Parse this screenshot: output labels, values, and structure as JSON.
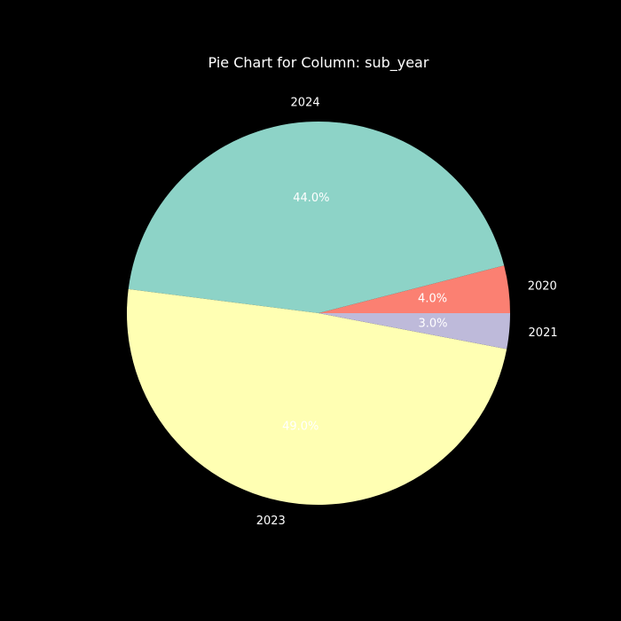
{
  "chart_data": {
    "type": "pie",
    "title": "Pie Chart for Column: sub_year",
    "background": "#000000",
    "start_angle_deg": 0,
    "direction": "counterclockwise",
    "slices": [
      {
        "label": "2020",
        "value": 4.0,
        "pct_label": "4.0%",
        "color": "#fb8072"
      },
      {
        "label": "2024",
        "value": 44.0,
        "pct_label": "44.0%",
        "color": "#8dd3c7"
      },
      {
        "label": "2023",
        "value": 49.0,
        "pct_label": "49.0%",
        "color": "#ffffb3"
      },
      {
        "label": "2021",
        "value": 3.0,
        "pct_label": "3.0%",
        "color": "#bebada"
      }
    ]
  }
}
